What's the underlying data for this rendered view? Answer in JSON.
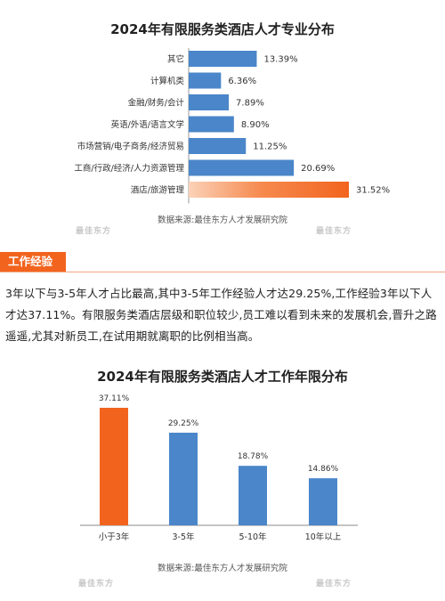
{
  "chart_data": [
    {
      "type": "bar",
      "orientation": "horizontal",
      "title": "2024年有限服务类酒店人才专业分布",
      "categories": [
        "其它",
        "计算机类",
        "金融/财务/会计",
        "英语/外语/语言文学",
        "市场营销/电子商务/经济贸易",
        "工商/行政/经济/人力资源管理",
        "酒店/旅游管理"
      ],
      "values": [
        13.39,
        6.36,
        7.89,
        8.9,
        11.25,
        20.69,
        31.52
      ],
      "value_labels": [
        "13.39%",
        "6.36%",
        "7.89%",
        "8.90%",
        "11.25%",
        "20.69%",
        "31.52%"
      ],
      "unit": "%",
      "highlight_index": 6,
      "colors": {
        "normal": "#4a86c9",
        "highlight": "#f2641e"
      },
      "source": "数据来源:最佳东方人才发展研究院"
    },
    {
      "type": "bar",
      "orientation": "vertical",
      "title": "2024年有限服务类酒店人才工作年限分布",
      "categories": [
        "小于3年",
        "3-5年",
        "5-10年",
        "10年以上"
      ],
      "values": [
        37.11,
        29.25,
        18.78,
        14.86
      ],
      "value_labels": [
        "37.11%",
        "29.25%",
        "18.78%",
        "14.86%"
      ],
      "unit": "%",
      "highlight_index": 0,
      "colors": {
        "normal": "#4a86c9",
        "highlight": "#f2641e"
      },
      "source": "数据来源:最佳东方人才发展研究院"
    }
  ],
  "section": {
    "tag": "工作经验",
    "paragraph": "3年以下与3-5年人才占比最高,其中3-5年工作经验人才达29.25%,工作经验3年以下人才达37.11%。有限服务类酒店层级和职位较少,员工难以看到未来的发展机会,晋升之路遥遥,尤其对新员工,在试用期就离职的比例相当高。"
  },
  "watermark": {
    "text": "最佳东方",
    "sub": "veryeast.cn"
  }
}
